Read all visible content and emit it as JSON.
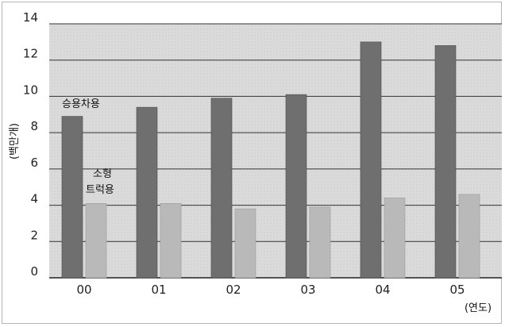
{
  "chart_data": {
    "type": "bar",
    "categories": [
      "00",
      "01",
      "02",
      "03",
      "04",
      "05"
    ],
    "series": [
      {
        "name": "승용차용",
        "values": [
          8.9,
          9.4,
          9.9,
          10.1,
          13.0,
          12.8
        ],
        "color": "#6f6f6f"
      },
      {
        "name": "소형 트럭용",
        "values": [
          4.1,
          4.1,
          3.8,
          3.9,
          4.4,
          4.6
        ],
        "color": "#b9b9b9"
      }
    ],
    "ylabel": "(백만개)",
    "xlabel": "(연도)",
    "ylim": [
      0,
      14
    ],
    "yticks": [
      0,
      2,
      4,
      6,
      8,
      10,
      12,
      14
    ],
    "grid": true,
    "plot_background": "#dedede",
    "annotations": {
      "series1_label": "승용차용",
      "series2_label_line1": "소형",
      "series2_label_line2": "트럭용"
    }
  }
}
